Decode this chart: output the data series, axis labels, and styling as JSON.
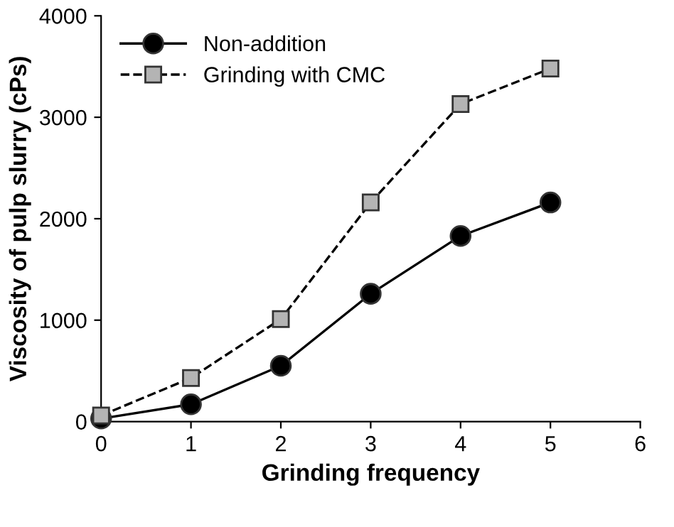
{
  "chart_data": {
    "type": "line",
    "xlabel": "Grinding frequency",
    "ylabel": "Viscosity of pulp slurry (cPs)",
    "x": [
      0,
      1,
      2,
      3,
      4,
      5
    ],
    "series": [
      {
        "name": "Non-addition",
        "color": "#000000",
        "marker": "circle",
        "line_style": "solid",
        "values": [
          30,
          170,
          550,
          1260,
          1830,
          2160
        ]
      },
      {
        "name": "Grinding with CMC",
        "color": "#b4b4b4",
        "marker": "square",
        "line_style": "dashed",
        "values": [
          60,
          430,
          1010,
          2160,
          3130,
          3480
        ]
      }
    ],
    "xlim": [
      0,
      6
    ],
    "xticks": [
      0,
      1,
      2,
      3,
      4,
      5,
      6
    ],
    "ylim": [
      0,
      4000
    ],
    "yticks": [
      0,
      1000,
      2000,
      3000,
      4000
    ],
    "grid": false,
    "legend": "top left"
  }
}
